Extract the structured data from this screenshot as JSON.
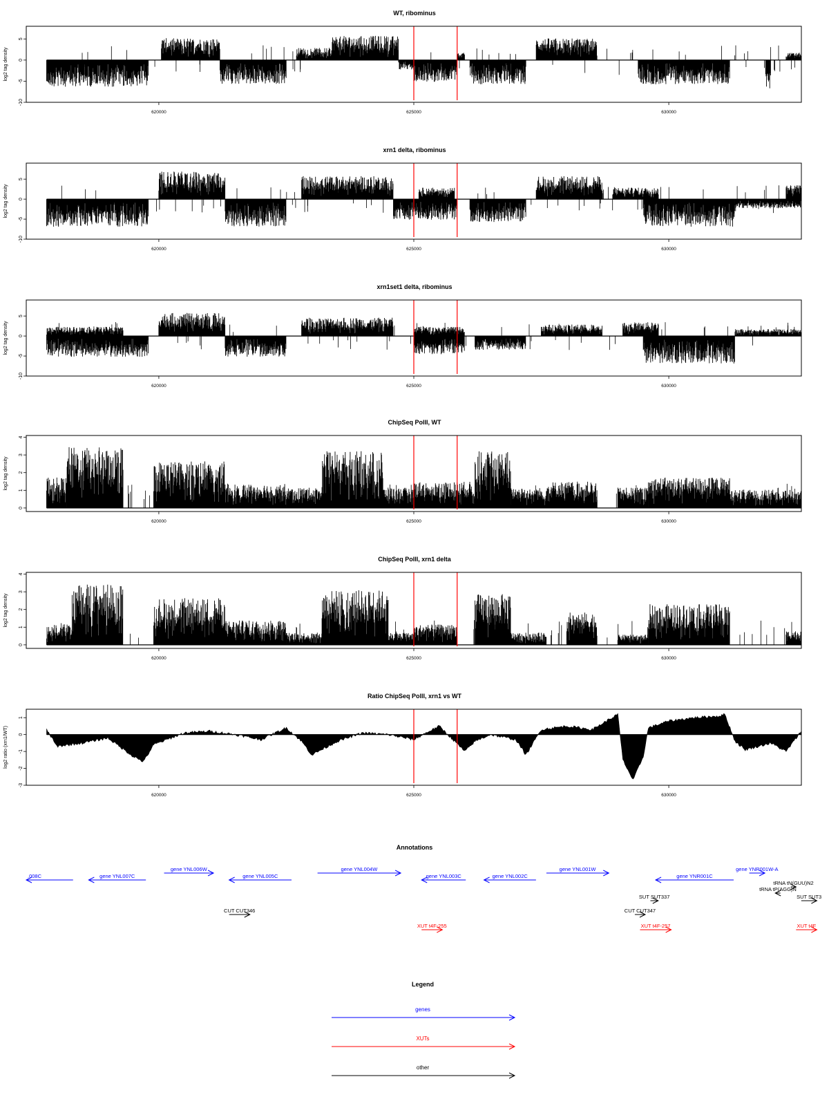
{
  "chart_data": [
    {
      "id": "wt_ribominus",
      "type": "bar",
      "title": "WT, ribominus",
      "ylabel": "log2 tag density",
      "ylim": [
        -10,
        8
      ],
      "yticks": [
        -10,
        -5,
        0,
        5
      ],
      "xlim": [
        617400,
        632600
      ],
      "xticks": [
        620000,
        625000,
        630000
      ],
      "xtick_labels": [
        "620000",
        "625000",
        "630000"
      ],
      "red_lines_x": [
        625000,
        625850
      ],
      "segments": [
        {
          "x": [
            617800,
            619800
          ],
          "v": -5.5
        },
        {
          "x": [
            620050,
            621200
          ],
          "v": 4.5
        },
        {
          "x": [
            621200,
            622500
          ],
          "v": -5
        },
        {
          "x": [
            622700,
            623400
          ],
          "v": 2.5
        },
        {
          "x": [
            623400,
            624700
          ],
          "v": 5
        },
        {
          "x": [
            624700,
            625000
          ],
          "v": -2
        },
        {
          "x": [
            625000,
            625850
          ],
          "v": -4.5
        },
        {
          "x": [
            625850,
            626000
          ],
          "v": 1.5
        },
        {
          "x": [
            626100,
            627200
          ],
          "v": -5
        },
        {
          "x": [
            627400,
            628600
          ],
          "v": 4.5
        },
        {
          "x": [
            629400,
            631200
          ],
          "v": -5
        },
        {
          "x": [
            631900,
            632000
          ],
          "v": -6
        },
        {
          "x": [
            632300,
            632600
          ],
          "v": 1.5
        }
      ]
    },
    {
      "id": "xrn1_ribominus",
      "type": "bar",
      "title": "xrn1 delta, ribominus",
      "ylabel": "log2 tag density",
      "ylim": [
        -10,
        9
      ],
      "yticks": [
        -10,
        -5,
        0,
        5
      ],
      "xlim": [
        617400,
        632600
      ],
      "xticks": [
        620000,
        625000,
        630000
      ],
      "xtick_labels": [
        "620000",
        "625000",
        "630000"
      ],
      "red_lines_x": [
        625000,
        625850
      ],
      "segments": [
        {
          "x": [
            617800,
            619800
          ],
          "v": -6
        },
        {
          "x": [
            620000,
            621300
          ],
          "v": 6
        },
        {
          "x": [
            621300,
            622500
          ],
          "v": -6
        },
        {
          "x": [
            622800,
            624600
          ],
          "v": 5
        },
        {
          "x": [
            624600,
            625850
          ],
          "v": -4.5
        },
        {
          "x": [
            625100,
            625800
          ],
          "v": 2.5
        },
        {
          "x": [
            626100,
            627200
          ],
          "v": -5
        },
        {
          "x": [
            627400,
            628700
          ],
          "v": 5
        },
        {
          "x": [
            628900,
            629800
          ],
          "v": 2.5
        },
        {
          "x": [
            629500,
            631300
          ],
          "v": -6
        },
        {
          "x": [
            631300,
            632600
          ],
          "v": -2
        },
        {
          "x": [
            632300,
            632600
          ],
          "v": 3
        }
      ]
    },
    {
      "id": "xrn1set1_ribominus",
      "type": "bar",
      "title": "xrn1set1 delta, ribominus",
      "ylabel": "log2 tag density",
      "ylim": [
        -10,
        9
      ],
      "yticks": [
        -10,
        -5,
        0,
        5
      ],
      "xlim": [
        617400,
        632600
      ],
      "xticks": [
        620000,
        625000,
        630000
      ],
      "xtick_labels": [
        "620000",
        "625000",
        "630000"
      ],
      "red_lines_x": [
        625000,
        625850
      ],
      "segments": [
        {
          "x": [
            617800,
            619800
          ],
          "v": -4.5
        },
        {
          "x": [
            617800,
            619300
          ],
          "v": 2
        },
        {
          "x": [
            620000,
            621300
          ],
          "v": 5
        },
        {
          "x": [
            621300,
            622500
          ],
          "v": -4.5
        },
        {
          "x": [
            622800,
            624600
          ],
          "v": 4
        },
        {
          "x": [
            625000,
            626000
          ],
          "v": -4
        },
        {
          "x": [
            625000,
            626000
          ],
          "v": 2
        },
        {
          "x": [
            626200,
            627200
          ],
          "v": -3
        },
        {
          "x": [
            627500,
            628700
          ],
          "v": 2.5
        },
        {
          "x": [
            629100,
            629800
          ],
          "v": 3
        },
        {
          "x": [
            629500,
            631300
          ],
          "v": -6
        },
        {
          "x": [
            631300,
            632600
          ],
          "v": 1.5
        }
      ]
    },
    {
      "id": "chipseq_wt",
      "type": "bar",
      "title": "ChipSeq PolII, WT",
      "ylabel": "log2 tag density",
      "ylim": [
        -0.2,
        4.1
      ],
      "yticks": [
        0,
        1,
        2,
        3,
        4
      ],
      "xlim": [
        617400,
        632600
      ],
      "xticks": [
        620000,
        625000,
        630000
      ],
      "xtick_labels": [
        "620000",
        "625000",
        "630000"
      ],
      "red_lines_x": [
        625000,
        625850
      ],
      "segments": [
        {
          "x": [
            617800,
            618200
          ],
          "v": 1.5
        },
        {
          "x": [
            618200,
            619300
          ],
          "v": 3
        },
        {
          "x": [
            619900,
            621300
          ],
          "v": 2.3
        },
        {
          "x": [
            621300,
            622500
          ],
          "v": 1.2
        },
        {
          "x": [
            622500,
            623200
          ],
          "v": 1
        },
        {
          "x": [
            623200,
            624400
          ],
          "v": 2.8
        },
        {
          "x": [
            624400,
            625000
          ],
          "v": 1
        },
        {
          "x": [
            625000,
            625850
          ],
          "v": 1.3
        },
        {
          "x": [
            625850,
            626200
          ],
          "v": 1.3
        },
        {
          "x": [
            626200,
            626900
          ],
          "v": 2.8
        },
        {
          "x": [
            626900,
            627600
          ],
          "v": 1
        },
        {
          "x": [
            627600,
            628600
          ],
          "v": 1.3
        },
        {
          "x": [
            629000,
            629600
          ],
          "v": 1
        },
        {
          "x": [
            629600,
            631200
          ],
          "v": 1.5
        },
        {
          "x": [
            631200,
            632600
          ],
          "v": 0.9
        }
      ]
    },
    {
      "id": "chipseq_xrn1",
      "type": "bar",
      "title": "ChipSeq PolII, xrn1 delta",
      "ylabel": "log2 tag density",
      "ylim": [
        -0.2,
        4.1
      ],
      "yticks": [
        0,
        1,
        2,
        3,
        4
      ],
      "xlim": [
        617400,
        632600
      ],
      "xticks": [
        620000,
        625000,
        630000
      ],
      "xtick_labels": [
        "620000",
        "625000",
        "630000"
      ],
      "red_lines_x": [
        625000,
        625850
      ],
      "segments": [
        {
          "x": [
            617800,
            618300
          ],
          "v": 1
        },
        {
          "x": [
            618300,
            619300
          ],
          "v": 3
        },
        {
          "x": [
            619900,
            621300
          ],
          "v": 2.3
        },
        {
          "x": [
            621300,
            622500
          ],
          "v": 1.2
        },
        {
          "x": [
            622500,
            623200
          ],
          "v": 0.6
        },
        {
          "x": [
            623200,
            624500
          ],
          "v": 2.7
        },
        {
          "x": [
            624500,
            625000
          ],
          "v": 0.6
        },
        {
          "x": [
            625000,
            625850
          ],
          "v": 1
        },
        {
          "x": [
            626200,
            626900
          ],
          "v": 2.5
        },
        {
          "x": [
            626900,
            627600
          ],
          "v": 0.6
        },
        {
          "x": [
            628000,
            628600
          ],
          "v": 1.6
        },
        {
          "x": [
            629000,
            629600
          ],
          "v": 0.5
        },
        {
          "x": [
            629600,
            631200
          ],
          "v": 2
        },
        {
          "x": [
            632300,
            632600
          ],
          "v": 0.7
        }
      ]
    },
    {
      "id": "ratio_xrn1_wt",
      "type": "area",
      "title": "Ratio ChipSeq PolII, xrn1 vs WT",
      "ylabel": "log2 ratio (xrn1/WT)",
      "ylim": [
        -3,
        1.5
      ],
      "yticks": [
        -3,
        -2,
        -1,
        0,
        1
      ],
      "xlim": [
        617400,
        632600
      ],
      "xticks": [
        620000,
        625000,
        630000
      ],
      "xtick_labels": [
        "620000",
        "625000",
        "630000"
      ],
      "red_lines_x": [
        625000,
        625850
      ],
      "x": [
        617800,
        618000,
        618500,
        619000,
        619500,
        619700,
        619900,
        620500,
        621000,
        621500,
        622000,
        622500,
        622800,
        623000,
        623500,
        624000,
        624500,
        625000,
        625300,
        625500,
        625800,
        626000,
        626200,
        626500,
        627000,
        627200,
        627500,
        628000,
        628500,
        629000,
        629100,
        629300,
        629500,
        629600,
        630000,
        630500,
        631000,
        631100,
        631300,
        631500,
        632000,
        632300,
        632600
      ],
      "values": [
        0.3,
        -0.7,
        -0.5,
        -0.2,
        -1.3,
        -1.6,
        -0.6,
        0.1,
        0.2,
        0.0,
        -0.3,
        0.4,
        -0.4,
        -1.2,
        -0.4,
        0.1,
        0.0,
        -0.3,
        0.2,
        0.5,
        -0.4,
        -1.0,
        -0.4,
        0.0,
        -0.3,
        -1.2,
        0.3,
        0.5,
        0.3,
        1.2,
        -1.5,
        -2.7,
        -1.3,
        0.4,
        0.8,
        1.0,
        1.1,
        1.2,
        -0.4,
        -0.9,
        -0.5,
        -1.0,
        0.2
      ]
    }
  ],
  "annotations": {
    "title": "Annotations",
    "features": [
      {
        "label": ".008C",
        "kind": "gene",
        "dir": "left",
        "x": [
          617400,
          618300
        ],
        "row": 0
      },
      {
        "label": "gene YNL007C",
        "kind": "gene",
        "dir": "left",
        "x": [
          618600,
          619700
        ],
        "row": 0
      },
      {
        "label": "gene YNL006W",
        "kind": "gene",
        "dir": "right",
        "x": [
          620050,
          621000
        ],
        "row": -1
      },
      {
        "label": "gene YNL005C",
        "kind": "gene",
        "dir": "left",
        "x": [
          621300,
          622500
        ],
        "row": 0
      },
      {
        "label": "gene YNL004W",
        "kind": "gene",
        "dir": "right",
        "x": [
          623000,
          624600
        ],
        "row": -1
      },
      {
        "label": "gene YNL003C",
        "kind": "gene",
        "dir": "left",
        "x": [
          625000,
          625850
        ],
        "row": 0
      },
      {
        "label": "gene YNL002C",
        "kind": "gene",
        "dir": "left",
        "x": [
          626200,
          627200
        ],
        "row": 0
      },
      {
        "label": "gene YNL001W",
        "kind": "gene",
        "dir": "right",
        "x": [
          627400,
          628600
        ],
        "row": -1
      },
      {
        "label": "gene YNR001C",
        "kind": "gene",
        "dir": "left",
        "x": [
          629500,
          631000
        ],
        "row": 0
      },
      {
        "label": "gene YNR001W-A",
        "kind": "gene",
        "dir": "right",
        "x": [
          631300,
          631600
        ],
        "row": -1
      },
      {
        "label": "tRNA tN(GUU)N2",
        "kind": "other",
        "dir": "right",
        "x": [
          632100,
          632200
        ],
        "row": 0.5
      },
      {
        "label": "tRNA tP(AGG)N",
        "kind": "other",
        "dir": "left",
        "x": [
          631800,
          631900
        ],
        "row": 1.2
      },
      {
        "label": "SUT SUT337",
        "kind": "other",
        "dir": "right",
        "x": [
          629400,
          629550
        ],
        "row": 2
      },
      {
        "label": "SUT SUT3",
        "kind": "other",
        "dir": "right",
        "x": [
          632300,
          632600
        ],
        "row": 2
      },
      {
        "label": "CUT CUT346",
        "kind": "other",
        "dir": "right",
        "x": [
          621300,
          621700
        ],
        "row": 3
      },
      {
        "label": "CUT CUT347",
        "kind": "other",
        "dir": "right",
        "x": [
          629100,
          629300
        ],
        "row": 3
      },
      {
        "label": "XUT t4F-255",
        "kind": "xut",
        "dir": "right",
        "x": [
          625000,
          625400
        ],
        "row": 4
      },
      {
        "label": "XUT t4F-257",
        "kind": "xut",
        "dir": "right",
        "x": [
          629200,
          629800
        ],
        "row": 4
      },
      {
        "label": "XUT t4F",
        "kind": "xut",
        "dir": "right",
        "x": [
          632200,
          632600
        ],
        "row": 4
      }
    ]
  },
  "legend": {
    "title": "Legend",
    "entries": [
      {
        "label": "genes",
        "color": "#0000ff"
      },
      {
        "label": "XUTs",
        "color": "#ff0000"
      },
      {
        "label": "other",
        "color": "#000000"
      }
    ]
  },
  "colors": {
    "gene": "#0000ff",
    "xut": "#ff0000",
    "other": "#000000",
    "redline": "#ff0000"
  }
}
